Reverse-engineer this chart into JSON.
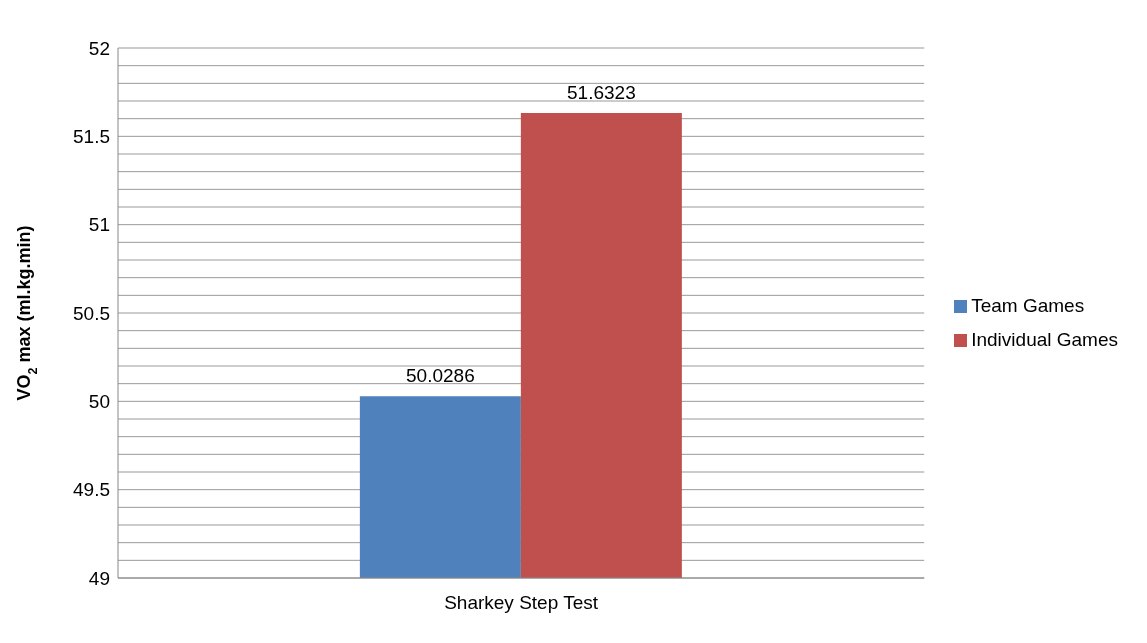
{
  "chart_data": {
    "type": "bar",
    "ylabel": "VO$_{2}$ max (ml.kg.min)",
    "categories": [
      "Sharkey Step Test"
    ],
    "series": [
      {
        "name": "Team Games",
        "color": "#4f81bd",
        "values": [
          50.0286
        ]
      },
      {
        "name": "Individual Games",
        "color": "#c0504d",
        "values": [
          51.6323
        ]
      }
    ],
    "ylim": [
      49,
      52
    ],
    "yticks": [
      49,
      {
        "value": 49.1,
        "label": null
      },
      {
        "value": 49.2,
        "label": null
      },
      {
        "value": 49.3,
        "label": null
      },
      {
        "value": 49.4,
        "label": null
      },
      49.5,
      {
        "value": 49.6,
        "label": null
      },
      {
        "value": 49.7,
        "label": null
      },
      {
        "value": 49.8,
        "label": null
      },
      {
        "value": 49.9,
        "label": null
      },
      50,
      {
        "value": 50.1,
        "label": null
      },
      {
        "value": 50.2,
        "label": null
      },
      {
        "value": 50.3,
        "label": null
      },
      {
        "value": 50.4,
        "label": null
      },
      50.5,
      {
        "value": 50.6,
        "label": null
      },
      {
        "value": 50.7,
        "label": null
      },
      {
        "value": 50.8,
        "label": null
      },
      {
        "value": 50.9,
        "label": null
      },
      51,
      {
        "value": 51.1,
        "label": null
      },
      {
        "value": 51.2,
        "label": null
      },
      {
        "value": 51.3,
        "label": null
      },
      {
        "value": 51.4,
        "label": null
      },
      51.5,
      {
        "value": 51.6,
        "label": null
      },
      {
        "value": 51.7,
        "label": null
      },
      {
        "value": 51.8,
        "label": null
      },
      {
        "value": 51.9,
        "label": null
      },
      52
    ],
    "grid": "y",
    "legend": "right",
    "data_labels": true
  }
}
